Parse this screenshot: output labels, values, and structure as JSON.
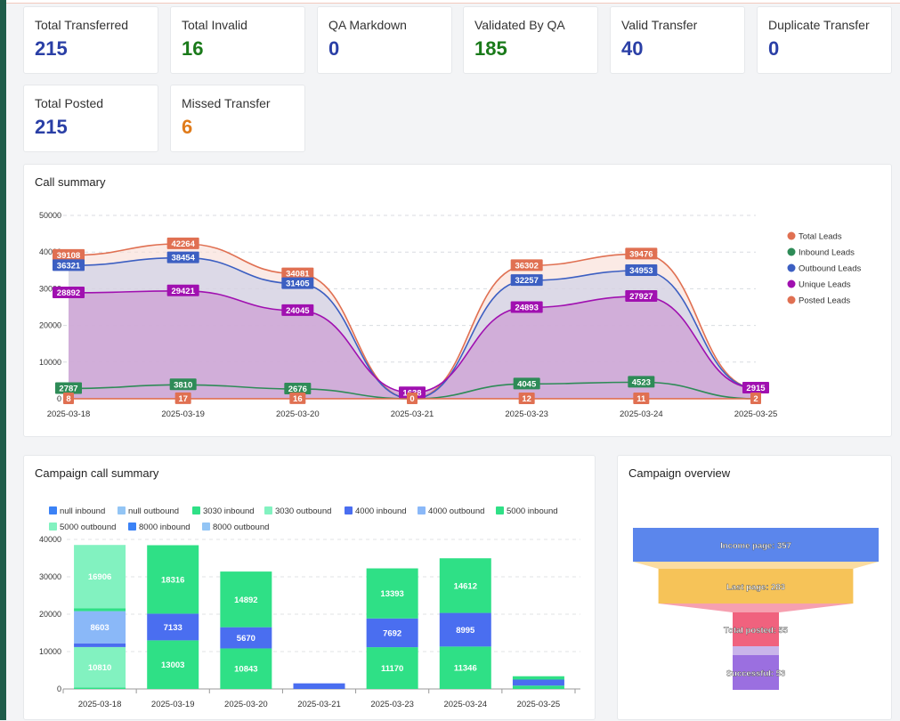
{
  "stats": [
    {
      "label": "Total Transferred",
      "value": "215",
      "color": "#2a3fa6"
    },
    {
      "label": "Total Invalid",
      "value": "16",
      "color": "#1a7a1a"
    },
    {
      "label": "QA Markdown",
      "value": "0",
      "color": "#2a3fa6"
    },
    {
      "label": "Validated By QA",
      "value": "185",
      "color": "#1a7a1a"
    },
    {
      "label": "Valid Transfer",
      "value": "40",
      "color": "#2a3fa6"
    },
    {
      "label": "Duplicate Transfer",
      "value": "0",
      "color": "#2a3fa6"
    },
    {
      "label": "Total Posted",
      "value": "215",
      "color": "#2a3fa6"
    },
    {
      "label": "Missed Transfer",
      "value": "6",
      "color": "#e07b1a"
    }
  ],
  "call_summary": {
    "title": "Call summary",
    "chart_data": {
      "type": "area",
      "categories": [
        "2025-03-18",
        "2025-03-19",
        "2025-03-20",
        "2025-03-21",
        "2025-03-23",
        "2025-03-24",
        "2025-03-25"
      ],
      "ylim": [
        0,
        50000
      ],
      "yticks": [
        "0",
        "10000",
        "20000",
        "30000",
        "40000",
        "50000"
      ],
      "series": [
        {
          "name": "Total Leads",
          "color": "#e07052",
          "values": [
            39108,
            42264,
            34081,
            0,
            36302,
            39476,
            2915
          ],
          "labels": [
            "39108",
            "42264",
            "34081",
            "",
            "36302",
            "39476",
            ""
          ]
        },
        {
          "name": "Inbound Leads",
          "color": "#2e8b57",
          "values": [
            2787,
            3810,
            2676,
            0,
            4045,
            4523,
            0
          ],
          "labels": [
            "2787",
            "3810",
            "2676",
            "",
            "4045",
            "4523",
            ""
          ]
        },
        {
          "name": "Outbound Leads",
          "color": "#3c5fc2",
          "values": [
            36321,
            38454,
            31405,
            0,
            32257,
            34953,
            2915
          ],
          "labels": [
            "36321",
            "38454",
            "31405",
            "",
            "32257",
            "34953",
            ""
          ]
        },
        {
          "name": "Unique Leads",
          "color": "#a010b0",
          "values": [
            28892,
            29421,
            24045,
            1638,
            24893,
            27927,
            2915
          ],
          "labels": [
            "28892",
            "29421",
            "24045",
            "1638",
            "24893",
            "27927",
            "2915"
          ]
        },
        {
          "name": "Posted Leads",
          "color": "#e07052",
          "values": [
            8,
            17,
            16,
            0,
            12,
            11,
            2
          ],
          "labels": [
            "8",
            "17",
            "16",
            "0",
            "12",
            "11",
            "2"
          ]
        }
      ]
    }
  },
  "campaign_call_summary": {
    "title": "Campaign call summary",
    "chart_data": {
      "type": "bar",
      "stacked": true,
      "categories": [
        "2025-03-18",
        "2025-03-19",
        "2025-03-20",
        "2025-03-21",
        "2025-03-23",
        "2025-03-24",
        "2025-03-25"
      ],
      "ylim": [
        0,
        40000
      ],
      "yticks": [
        "0",
        "10000",
        "20000",
        "30000",
        "40000"
      ],
      "legend": [
        {
          "name": "null inbound",
          "color": "#3b82f6"
        },
        {
          "name": "null outbound",
          "color": "#93c5f5"
        },
        {
          "name": "3030 inbound",
          "color": "#2fe086"
        },
        {
          "name": "3030 outbound",
          "color": "#82f2c0"
        },
        {
          "name": "4000 inbound",
          "color": "#4a6ef0"
        },
        {
          "name": "4000 outbound",
          "color": "#8ab8f8"
        },
        {
          "name": "5000 inbound",
          "color": "#2fe086"
        },
        {
          "name": "5000 outbound",
          "color": "#82f2c0"
        },
        {
          "name": "8000 inbound",
          "color": "#3b82f6"
        },
        {
          "name": "8000 outbound",
          "color": "#93c5f5"
        }
      ],
      "stacks": [
        [
          {
            "v": 400,
            "c": "#2fe086"
          },
          {
            "v": 10810,
            "c": "#82f2c0",
            "label": "10810"
          },
          {
            "v": 1000,
            "c": "#4a6ef0"
          },
          {
            "v": 8603,
            "c": "#8ab8f8",
            "label": "8603"
          },
          {
            "v": 800,
            "c": "#2fe086"
          },
          {
            "v": 16906,
            "c": "#82f2c0",
            "label": "16906"
          }
        ],
        [
          {
            "v": 13003,
            "c": "#2fe086",
            "label": "13003"
          },
          {
            "v": 7133,
            "c": "#4a6ef0",
            "label": "7133"
          },
          {
            "v": 18316,
            "c": "#2fe086",
            "label": "18316"
          }
        ],
        [
          {
            "v": 10843,
            "c": "#2fe086",
            "label": "10843"
          },
          {
            "v": 5670,
            "c": "#4a6ef0",
            "label": "5670"
          },
          {
            "v": 14892,
            "c": "#2fe086",
            "label": "14892"
          }
        ],
        [
          {
            "v": 1500,
            "c": "#4a6ef0"
          }
        ],
        [
          {
            "v": 11170,
            "c": "#2fe086",
            "label": "11170"
          },
          {
            "v": 7692,
            "c": "#4a6ef0",
            "label": "7692"
          },
          {
            "v": 13393,
            "c": "#2fe086",
            "label": "13393"
          }
        ],
        [
          {
            "v": 11346,
            "c": "#2fe086",
            "label": "11346"
          },
          {
            "v": 8995,
            "c": "#4a6ef0",
            "label": "8995"
          },
          {
            "v": 14612,
            "c": "#2fe086",
            "label": "14612"
          }
        ],
        [
          {
            "v": 900,
            "c": "#2fe086"
          },
          {
            "v": 1600,
            "c": "#4a6ef0"
          },
          {
            "v": 900,
            "c": "#2fe086"
          }
        ]
      ]
    }
  },
  "campaign_overview": {
    "title": "Campaign overview",
    "chart_data": {
      "type": "funnel",
      "stages": [
        {
          "label": "Income page: 357",
          "value": 357,
          "color": "#5b86ec",
          "neck": "#fbdca0"
        },
        {
          "label": "Last page: 283",
          "value": 283,
          "color": "#f6c358",
          "neck": "#f6a0b0"
        },
        {
          "label": "Total posted: 55",
          "value": 55,
          "color": "#f0627e",
          "neck": "#c9b4ea"
        },
        {
          "label": "Successful: 53",
          "value": 53,
          "color": "#9b6fe0",
          "neck": ""
        }
      ]
    }
  }
}
